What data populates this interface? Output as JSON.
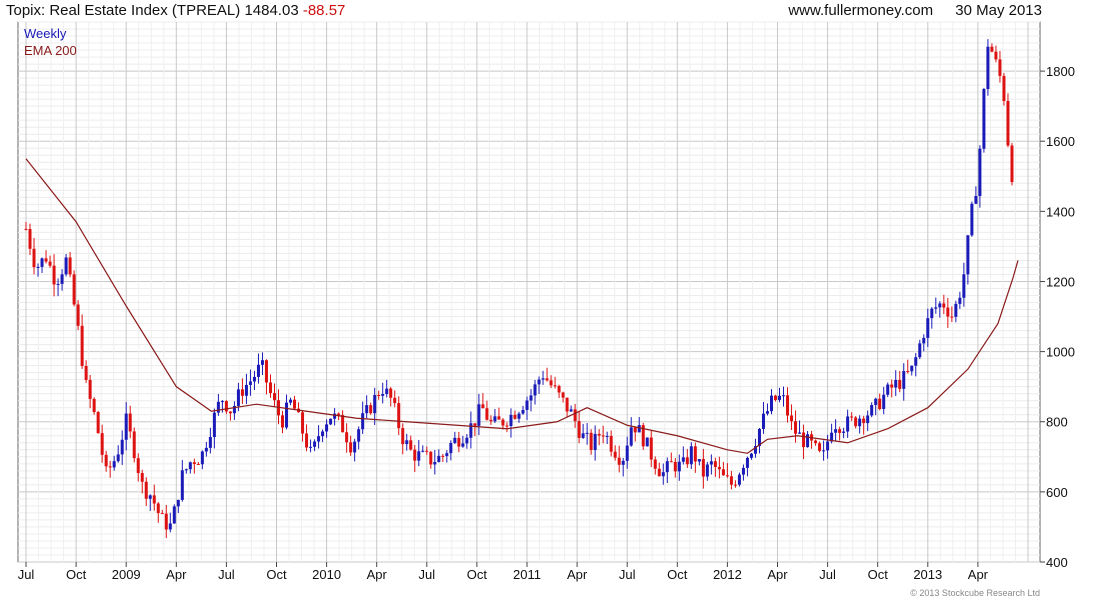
{
  "header": {
    "title": "Topix: Real Estate Index (TPREAL)",
    "last": "1484.03",
    "change": "-88.57",
    "site": "www.fullermoney.com",
    "date": "30 May 2013"
  },
  "footer": "© 2013 Stockcube Research Ltd",
  "chart_data": {
    "type": "candlestick",
    "legend": [
      {
        "label": "Weekly",
        "color": "#1a1ab8"
      },
      {
        "label": "EMA 200",
        "color": "#8b1a1a"
      }
    ],
    "ylim": [
      400,
      1940
    ],
    "yticks": [
      400,
      600,
      800,
      1000,
      1200,
      1400,
      1600,
      1800
    ],
    "xlim": [
      0,
      1000
    ],
    "xticks": [
      {
        "x": 0,
        "label": "Jul"
      },
      {
        "x": 50,
        "label": "Oct"
      },
      {
        "x": 100,
        "label": "2009"
      },
      {
        "x": 150,
        "label": "Apr"
      },
      {
        "x": 200,
        "label": "Jul"
      },
      {
        "x": 250,
        "label": "Oct"
      },
      {
        "x": 300,
        "label": "2010"
      },
      {
        "x": 350,
        "label": "Apr"
      },
      {
        "x": 400,
        "label": "Jul"
      },
      {
        "x": 450,
        "label": "Oct"
      },
      {
        "x": 500,
        "label": "2011"
      },
      {
        "x": 550,
        "label": "Apr"
      },
      {
        "x": 600,
        "label": "Jul"
      },
      {
        "x": 650,
        "label": "Oct"
      },
      {
        "x": 700,
        "label": "2012"
      },
      {
        "x": 750,
        "label": "Apr"
      },
      {
        "x": 800,
        "label": "Jul"
      },
      {
        "x": 850,
        "label": "Oct"
      },
      {
        "x": 900,
        "label": "2013"
      },
      {
        "x": 950,
        "label": "Apr"
      }
    ],
    "grid": true,
    "up_color": "#1a1ab8",
    "down_color": "#dd1111",
    "close_points": [
      [
        0,
        1350
      ],
      [
        10,
        1240
      ],
      [
        20,
        1270
      ],
      [
        30,
        1200
      ],
      [
        40,
        1260
      ],
      [
        50,
        1100
      ],
      [
        60,
        900
      ],
      [
        70,
        800
      ],
      [
        80,
        650
      ],
      [
        90,
        700
      ],
      [
        100,
        800
      ],
      [
        110,
        700
      ],
      [
        115,
        620
      ],
      [
        125,
        590
      ],
      [
        135,
        520
      ],
      [
        145,
        500
      ],
      [
        155,
        640
      ],
      [
        165,
        690
      ],
      [
        175,
        700
      ],
      [
        185,
        790
      ],
      [
        195,
        870
      ],
      [
        205,
        830
      ],
      [
        215,
        890
      ],
      [
        225,
        920
      ],
      [
        235,
        960
      ],
      [
        245,
        870
      ],
      [
        255,
        800
      ],
      [
        265,
        860
      ],
      [
        275,
        780
      ],
      [
        285,
        700
      ],
      [
        295,
        790
      ],
      [
        305,
        820
      ],
      [
        315,
        790
      ],
      [
        325,
        730
      ],
      [
        335,
        800
      ],
      [
        345,
        850
      ],
      [
        355,
        900
      ],
      [
        365,
        860
      ],
      [
        375,
        760
      ],
      [
        385,
        710
      ],
      [
        395,
        700
      ],
      [
        405,
        690
      ],
      [
        415,
        700
      ],
      [
        425,
        740
      ],
      [
        435,
        760
      ],
      [
        445,
        790
      ],
      [
        455,
        840
      ],
      [
        465,
        790
      ],
      [
        475,
        800
      ],
      [
        485,
        820
      ],
      [
        495,
        850
      ],
      [
        505,
        880
      ],
      [
        515,
        940
      ],
      [
        525,
        900
      ],
      [
        535,
        860
      ],
      [
        545,
        820
      ],
      [
        555,
        760
      ],
      [
        565,
        730
      ],
      [
        575,
        780
      ],
      [
        585,
        730
      ],
      [
        595,
        690
      ],
      [
        605,
        800
      ],
      [
        615,
        760
      ],
      [
        625,
        700
      ],
      [
        635,
        650
      ],
      [
        645,
        680
      ],
      [
        655,
        670
      ],
      [
        665,
        720
      ],
      [
        675,
        650
      ],
      [
        685,
        680
      ],
      [
        695,
        640
      ],
      [
        705,
        620
      ],
      [
        715,
        680
      ],
      [
        725,
        730
      ],
      [
        735,
        800
      ],
      [
        745,
        860
      ],
      [
        755,
        870
      ],
      [
        765,
        780
      ],
      [
        775,
        750
      ],
      [
        785,
        730
      ],
      [
        795,
        690
      ],
      [
        805,
        800
      ],
      [
        815,
        790
      ],
      [
        825,
        800
      ],
      [
        835,
        820
      ],
      [
        845,
        830
      ],
      [
        855,
        870
      ],
      [
        865,
        900
      ],
      [
        875,
        920
      ],
      [
        885,
        950
      ],
      [
        895,
        1050
      ],
      [
        905,
        1120
      ],
      [
        915,
        1140
      ],
      [
        925,
        1100
      ],
      [
        935,
        1200
      ],
      [
        945,
        1420
      ],
      [
        950,
        1500
      ],
      [
        955,
        1700
      ],
      [
        960,
        1880
      ],
      [
        965,
        1850
      ],
      [
        970,
        1800
      ],
      [
        975,
        1760
      ],
      [
        980,
        1600
      ],
      [
        985,
        1484
      ]
    ],
    "ema_points": [
      [
        0,
        1550
      ],
      [
        50,
        1370
      ],
      [
        100,
        1130
      ],
      [
        150,
        900
      ],
      [
        185,
        830
      ],
      [
        230,
        850
      ],
      [
        280,
        830
      ],
      [
        330,
        810
      ],
      [
        380,
        800
      ],
      [
        430,
        790
      ],
      [
        480,
        780
      ],
      [
        530,
        800
      ],
      [
        560,
        840
      ],
      [
        600,
        790
      ],
      [
        650,
        760
      ],
      [
        700,
        720
      ],
      [
        720,
        710
      ],
      [
        740,
        750
      ],
      [
        770,
        760
      ],
      [
        820,
        740
      ],
      [
        860,
        780
      ],
      [
        900,
        840
      ],
      [
        940,
        950
      ],
      [
        970,
        1080
      ],
      [
        985,
        1210
      ],
      [
        990,
        1260
      ]
    ]
  }
}
